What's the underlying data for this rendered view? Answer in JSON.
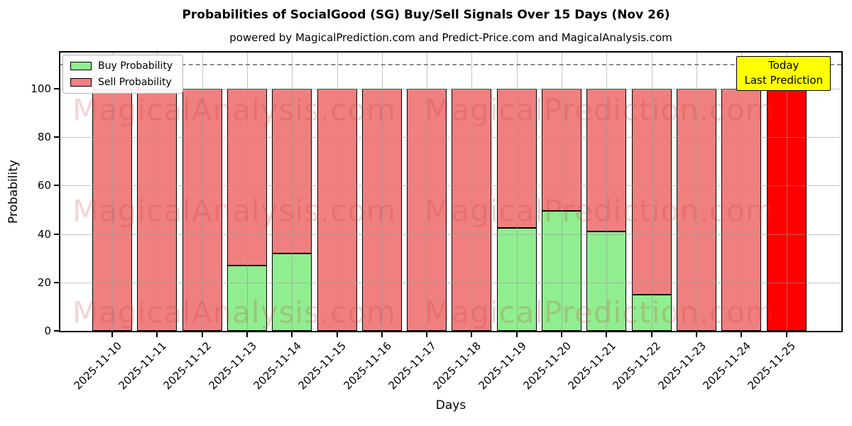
{
  "chart_data": {
    "type": "bar",
    "stacked": true,
    "title": "Probabilities of SocialGood (SG) Buy/Sell Signals Over 15 Days (Nov 26)",
    "subtitle": "powered by MagicalPrediction.com and Predict-Price.com and MagicalAnalysis.com",
    "xlabel": "Days",
    "ylabel": "Probability",
    "ylim": [
      0,
      115
    ],
    "yticks": [
      0,
      20,
      40,
      60,
      80,
      100
    ],
    "grid": true,
    "legend_position": "upper left",
    "categories": [
      "2025-11-10",
      "2025-11-11",
      "2025-11-12",
      "2025-11-13",
      "2025-11-14",
      "2025-11-15",
      "2025-11-16",
      "2025-11-17",
      "2025-11-18",
      "2025-11-19",
      "2025-11-20",
      "2025-11-21",
      "2025-11-22",
      "2025-11-23",
      "2025-11-24",
      "2025-11-25"
    ],
    "series": [
      {
        "name": "Buy Probability",
        "color": "#90ee90",
        "values": [
          0,
          0,
          0,
          27,
          32,
          0,
          0,
          0,
          0,
          42.5,
          49.5,
          41,
          15,
          0,
          0,
          0
        ]
      },
      {
        "name": "Sell Probability",
        "color": "#f08080",
        "values": [
          100,
          100,
          100,
          73,
          68,
          100,
          100,
          100,
          100,
          57.5,
          50.5,
          59,
          85,
          100,
          100,
          100
        ]
      }
    ],
    "highlight": {
      "index": 15,
      "color": "#ff0000"
    },
    "dashed_line_y": 110,
    "bar_edge_color": "#000000",
    "grid_color": "#969696"
  },
  "annotation_box": {
    "lines": [
      "Today",
      "Last Prediction"
    ],
    "bg_color": "#ffff00"
  },
  "watermarks": {
    "texts": [
      "MagicalAnalysis.com",
      "MagicalPrediction.com"
    ],
    "color": "rgba(201,57,57,0.22)"
  }
}
